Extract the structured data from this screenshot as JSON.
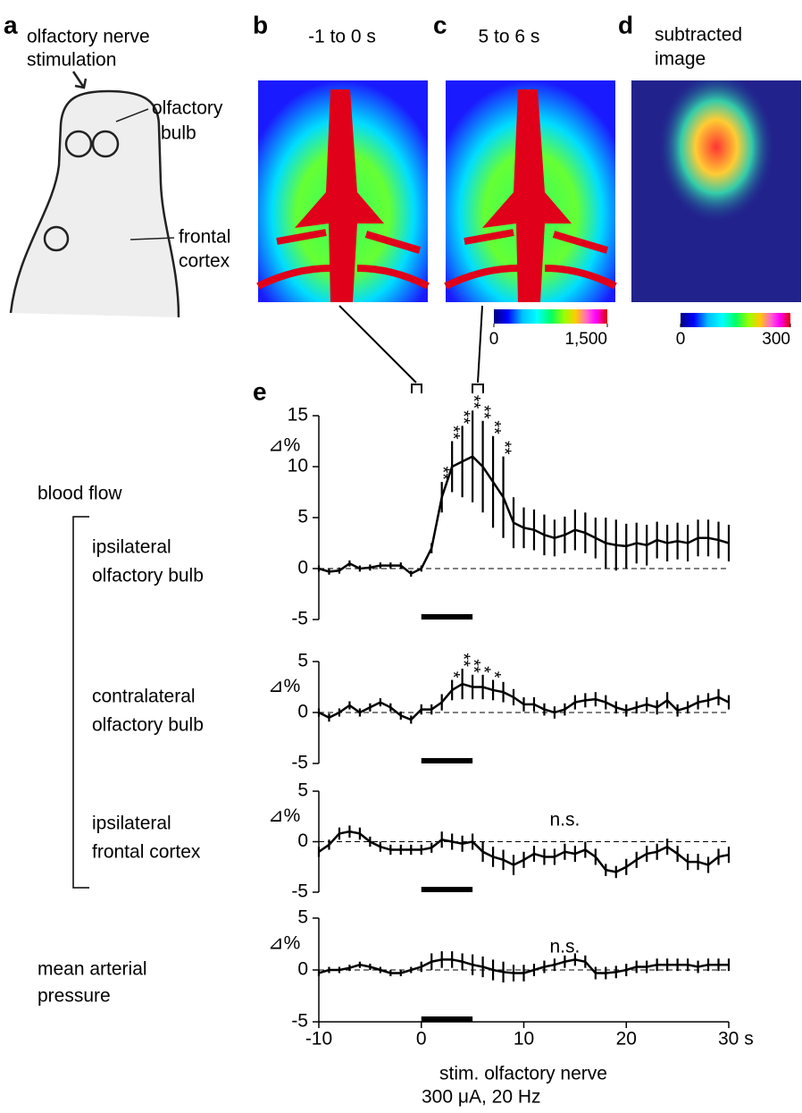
{
  "panel_letters": {
    "a": "a",
    "b": "b",
    "c": "c",
    "d": "d",
    "e": "e"
  },
  "diagram": {
    "stimulation": [
      "olfactory nerve",
      "stimulation"
    ],
    "bulb": [
      "olfactory",
      "bulb"
    ],
    "cortex": [
      "frontal",
      "cortex"
    ]
  },
  "images": {
    "b_title": "-1 to 0 s",
    "c_title": "5 to 6 s",
    "d_title": [
      "subtracted",
      "image"
    ],
    "colorbar_bc": {
      "ticks": [
        0,
        {
          "value": 1500,
          "label": "1,500"
        }
      ],
      "lim": [
        0,
        1500
      ]
    },
    "colorbar_d": {
      "ticks": [
        0,
        300
      ],
      "lim": [
        0,
        300
      ]
    }
  },
  "group_label": "blood flow",
  "stimulus": {
    "start": 0,
    "end": 5,
    "label": "stim. olfactory nerve",
    "sublabel": "300 μA, 20 Hz"
  },
  "chart_data": [
    {
      "type": "line",
      "title": [
        "ipsilateral",
        "olfactory bulb"
      ],
      "ylabel": "⊿%",
      "color": "#000000",
      "ylim": [
        -5,
        15
      ],
      "yticks": [
        -5,
        0,
        5,
        10,
        15
      ],
      "xlim": [
        -10,
        30
      ],
      "x": [
        -10,
        -9,
        -8,
        -7,
        -6,
        -5,
        -4,
        -3,
        -2,
        -1,
        0,
        1,
        2,
        3,
        4,
        5,
        6,
        7,
        8,
        9,
        10,
        11,
        12,
        13,
        14,
        15,
        16,
        17,
        18,
        19,
        20,
        21,
        22,
        23,
        24,
        25,
        26,
        27,
        28,
        29,
        30
      ],
      "values": [
        0,
        -0.3,
        -0.2,
        0.5,
        0,
        0.1,
        0.3,
        0.3,
        0.3,
        -0.5,
        0,
        2,
        7,
        10,
        10.5,
        11,
        10,
        8.5,
        7,
        4.5,
        4,
        3.8,
        3.3,
        3,
        3.3,
        3.8,
        3.5,
        3,
        2.5,
        2.3,
        2.2,
        2.5,
        2.3,
        2.8,
        2.5,
        2.7,
        2.5,
        3,
        3,
        2.8,
        2.5
      ],
      "errors": [
        0.3,
        0.3,
        0.3,
        0.3,
        0.3,
        0.3,
        0.3,
        0.3,
        0.3,
        0.3,
        0.3,
        0.5,
        1.5,
        2.5,
        3.5,
        4.5,
        4.5,
        4.5,
        4,
        2.5,
        2,
        2,
        2,
        1.8,
        1.8,
        2,
        2,
        2,
        2.5,
        2.5,
        2.2,
        2,
        2,
        1.8,
        1.8,
        1.8,
        1.8,
        1.8,
        1.8,
        1.8,
        1.8
      ],
      "annotations": [
        {
          "x": 2,
          "text": "**"
        },
        {
          "x": 3,
          "text": "**"
        },
        {
          "x": 4,
          "text": "**"
        },
        {
          "x": 5,
          "text": "**"
        },
        {
          "x": 6,
          "text": "**"
        },
        {
          "x": 7,
          "text": "**"
        },
        {
          "x": 8,
          "text": "**"
        }
      ]
    },
    {
      "type": "line",
      "title": [
        "contralateral",
        "olfactory bulb"
      ],
      "ylabel": "⊿%",
      "color": "#000000",
      "ylim": [
        -5,
        5
      ],
      "yticks": [
        -5,
        0,
        5
      ],
      "xlim": [
        -10,
        30
      ],
      "x": [
        -10,
        -9,
        -8,
        -7,
        -6,
        -5,
        -4,
        -3,
        -2,
        -1,
        0,
        1,
        2,
        3,
        4,
        5,
        6,
        7,
        8,
        9,
        10,
        11,
        12,
        13,
        14,
        15,
        16,
        17,
        18,
        19,
        20,
        21,
        22,
        23,
        24,
        25,
        26,
        27,
        28,
        29,
        30
      ],
      "values": [
        0,
        -0.5,
        0,
        0.7,
        0,
        0.5,
        1,
        0.5,
        -0.3,
        -0.7,
        0.3,
        0.3,
        1,
        2.2,
        2.8,
        2.5,
        2.5,
        2.2,
        2,
        1.5,
        0.8,
        0.8,
        0.3,
        0,
        0.3,
        1,
        1.2,
        1.3,
        1,
        0.5,
        0.2,
        0.5,
        0.8,
        0.5,
        1.2,
        0.2,
        0.5,
        1,
        1.2,
        1.5,
        1
      ],
      "errors": [
        0.4,
        0.4,
        0.4,
        0.4,
        0.4,
        0.4,
        0.4,
        0.4,
        0.4,
        0.4,
        0.5,
        0.5,
        0.8,
        1,
        1.5,
        1.2,
        1.2,
        1,
        1,
        0.8,
        0.7,
        0.7,
        0.6,
        0.6,
        0.6,
        0.7,
        0.7,
        0.7,
        0.7,
        0.6,
        0.6,
        0.6,
        0.7,
        0.7,
        0.8,
        0.6,
        0.6,
        0.7,
        0.7,
        0.8,
        0.7
      ],
      "annotations": [
        {
          "x": 3,
          "text": "*"
        },
        {
          "x": 4,
          "text": "**"
        },
        {
          "x": 5,
          "text": "**"
        },
        {
          "x": 6,
          "text": "*"
        },
        {
          "x": 7,
          "text": "*"
        }
      ]
    },
    {
      "type": "line",
      "title": [
        "ipsilateral",
        "frontal cortex"
      ],
      "ylabel": "⊿%",
      "color": "#000000",
      "ylim": [
        -5,
        5
      ],
      "yticks": [
        -5,
        0,
        5
      ],
      "xlim": [
        -10,
        30
      ],
      "note": "n.s.",
      "x": [
        -10,
        -9,
        -8,
        -7,
        -6,
        -5,
        -4,
        -3,
        -2,
        -1,
        0,
        1,
        2,
        3,
        4,
        5,
        6,
        7,
        8,
        9,
        10,
        11,
        12,
        13,
        14,
        15,
        16,
        17,
        18,
        19,
        20,
        21,
        22,
        23,
        24,
        25,
        26,
        27,
        28,
        29,
        30
      ],
      "values": [
        -1,
        -0.3,
        0.8,
        1,
        0.8,
        0,
        -0.5,
        -0.8,
        -0.8,
        -0.8,
        -0.8,
        -0.6,
        0.2,
        0,
        -0.2,
        0,
        -1,
        -1.5,
        -1.8,
        -2.3,
        -1.8,
        -1.2,
        -1.5,
        -1.5,
        -1,
        -1.2,
        -0.8,
        -1.5,
        -2.8,
        -3,
        -2.5,
        -1.8,
        -1.2,
        -1,
        -0.5,
        -1.2,
        -2,
        -2,
        -2.3,
        -1.5,
        -1.3
      ],
      "errors": [
        0.5,
        0.5,
        0.6,
        0.6,
        0.6,
        0.5,
        0.5,
        0.5,
        0.5,
        0.5,
        0.5,
        0.5,
        0.8,
        0.8,
        0.8,
        0.8,
        1,
        1,
        1,
        1,
        0.8,
        0.8,
        0.8,
        0.8,
        0.8,
        0.8,
        0.8,
        0.8,
        0.6,
        0.6,
        0.8,
        0.8,
        0.8,
        0.8,
        0.8,
        0.8,
        0.8,
        0.8,
        0.8,
        0.8,
        0.8
      ]
    },
    {
      "type": "line",
      "title": [
        "mean arterial",
        "pressure"
      ],
      "ylabel": "⊿%",
      "color": "#000000",
      "ylim": [
        -5,
        5
      ],
      "yticks": [
        -5,
        0,
        5
      ],
      "xlim": [
        -10,
        30
      ],
      "note": "n.s.",
      "xticks": [
        -10,
        0,
        10,
        20,
        {
          "value": 30,
          "label": "30 s"
        }
      ],
      "x": [
        -10,
        -9,
        -8,
        -7,
        -6,
        -5,
        -4,
        -3,
        -2,
        -1,
        0,
        1,
        2,
        3,
        4,
        5,
        6,
        7,
        8,
        9,
        10,
        11,
        12,
        13,
        14,
        15,
        16,
        17,
        18,
        19,
        20,
        21,
        22,
        23,
        24,
        25,
        26,
        27,
        28,
        29,
        30
      ],
      "values": [
        -0.3,
        0,
        0,
        0.2,
        0.5,
        0.3,
        0,
        -0.3,
        -0.3,
        0,
        0.3,
        0.8,
        1,
        1,
        0.8,
        0.5,
        0.3,
        0,
        -0.2,
        -0.3,
        -0.3,
        0,
        0.3,
        0.5,
        0.8,
        1,
        0.8,
        -0.3,
        -0.3,
        -0.2,
        0,
        0.3,
        0.3,
        0.5,
        0.5,
        0.5,
        0.5,
        0.3,
        0.5,
        0.5,
        0.5
      ],
      "errors": [
        0.3,
        0.3,
        0.3,
        0.3,
        0.3,
        0.3,
        0.3,
        0.3,
        0.3,
        0.3,
        0.5,
        0.8,
        0.8,
        0.8,
        0.8,
        1,
        1,
        1,
        1,
        0.8,
        0.8,
        0.6,
        0.6,
        0.6,
        0.6,
        0.6,
        0.6,
        0.6,
        0.6,
        0.6,
        0.6,
        0.6,
        0.6,
        0.6,
        0.6,
        0.6,
        0.6,
        0.6,
        0.6,
        0.6,
        0.6
      ]
    }
  ]
}
